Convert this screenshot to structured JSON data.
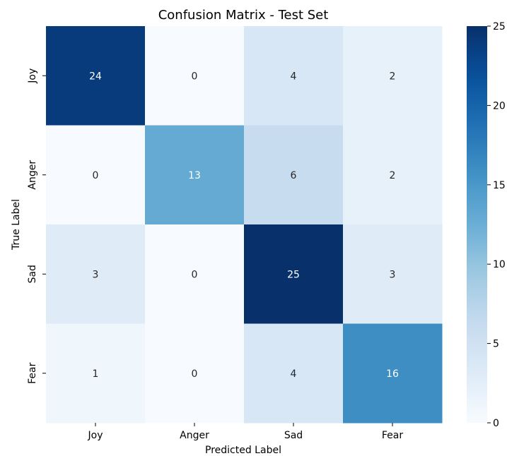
{
  "chart_data": {
    "type": "heatmap",
    "title": "Confusion Matrix - Test Set",
    "xlabel": "Predicted Label",
    "ylabel": "True Label",
    "x_categories": [
      "Joy",
      "Anger",
      "Sad",
      "Fear"
    ],
    "y_categories": [
      "Joy",
      "Anger",
      "Sad",
      "Fear"
    ],
    "values": [
      [
        24,
        0,
        4,
        2
      ],
      [
        0,
        13,
        6,
        2
      ],
      [
        3,
        0,
        25,
        3
      ],
      [
        1,
        0,
        4,
        16
      ]
    ],
    "colormap": "Blues",
    "color_range": [
      0,
      25
    ],
    "colorbar_ticks": [
      "0",
      "5",
      "10",
      "15",
      "20",
      "25"
    ]
  }
}
